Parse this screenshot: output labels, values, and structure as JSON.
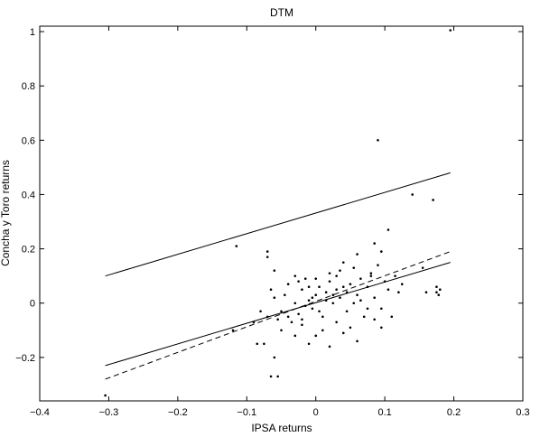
{
  "chart_data": {
    "type": "scatter",
    "title": "DTM",
    "xlabel": "IPSA returns",
    "ylabel": "Concha y Toro returns",
    "xlim": [
      -0.4,
      0.3
    ],
    "ylim": [
      -0.36,
      1.02
    ],
    "xticks": [
      -0.4,
      -0.3,
      -0.2,
      -0.1,
      0,
      0.1,
      0.2,
      0.3
    ],
    "xtick_labels": [
      "−0.4",
      "−0.3",
      "−0.2",
      "−0.1",
      "0",
      "0.1",
      "0.2",
      "0.3"
    ],
    "yticks": [
      -0.2,
      0,
      0.2,
      0.4,
      0.6,
      0.8,
      1
    ],
    "ytick_labels": [
      "−0.2",
      "0",
      "0.2",
      "0.4",
      "0.6",
      "0.8",
      "1"
    ],
    "grid": false,
    "points": [
      [
        -0.305,
        -0.34
      ],
      [
        0.195,
        1.005
      ],
      [
        0.09,
        0.6
      ],
      [
        -0.115,
        0.21
      ],
      [
        0.14,
        0.4
      ],
      [
        0.17,
        0.38
      ],
      [
        0.105,
        0.27
      ],
      [
        0.085,
        0.22
      ],
      [
        -0.07,
        0.19
      ],
      [
        -0.07,
        0.17
      ],
      [
        0.095,
        0.19
      ],
      [
        0.155,
        0.13
      ],
      [
        0.175,
        0.06
      ],
      [
        0.175,
        0.04
      ],
      [
        0.18,
        0.05
      ],
      [
        0.178,
        0.03
      ],
      [
        0.16,
        0.04
      ],
      [
        -0.065,
        -0.27
      ],
      [
        -0.055,
        -0.27
      ],
      [
        -0.12,
        -0.1
      ],
      [
        -0.085,
        -0.15
      ],
      [
        -0.075,
        -0.15
      ],
      [
        -0.06,
        -0.2
      ],
      [
        -0.09,
        -0.07
      ],
      [
        -0.08,
        -0.03
      ],
      [
        -0.07,
        -0.05
      ],
      [
        -0.065,
        0.05
      ],
      [
        -0.06,
        0.02
      ],
      [
        -0.05,
        -0.03
      ],
      [
        -0.045,
        0.03
      ],
      [
        -0.04,
        0.07
      ],
      [
        -0.035,
        -0.07
      ],
      [
        -0.03,
        0.1
      ],
      [
        -0.025,
        0.08
      ],
      [
        -0.02,
        0.05
      ],
      [
        -0.015,
        0.09
      ],
      [
        -0.01,
        0.01
      ],
      [
        -0.005,
        -0.02
      ],
      [
        0.0,
        0.03
      ],
      [
        0.005,
        0.06
      ],
      [
        0.01,
        -0.05
      ],
      [
        0.015,
        0.04
      ],
      [
        0.02,
        0.08
      ],
      [
        0.025,
        0.0
      ],
      [
        0.03,
        0.1
      ],
      [
        0.035,
        0.12
      ],
      [
        0.04,
        0.06
      ],
      [
        0.045,
        -0.03
      ],
      [
        0.05,
        0.07
      ],
      [
        0.055,
        0.13
      ],
      [
        0.06,
        0.03
      ],
      [
        0.065,
        0.09
      ],
      [
        0.07,
        -0.05
      ],
      [
        0.075,
        0.06
      ],
      [
        0.08,
        0.11
      ],
      [
        0.085,
        0.02
      ],
      [
        0.09,
        0.14
      ],
      [
        0.095,
        -0.02
      ],
      [
        0.1,
        0.08
      ],
      [
        0.105,
        0.05
      ],
      [
        0.11,
        -0.05
      ],
      [
        0.115,
        0.1
      ],
      [
        0.12,
        0.04
      ],
      [
        0.125,
        0.07
      ],
      [
        -0.03,
        -0.12
      ],
      [
        -0.02,
        -0.08
      ],
      [
        -0.01,
        -0.15
      ],
      [
        0.0,
        -0.12
      ],
      [
        0.01,
        -0.1
      ],
      [
        0.02,
        -0.16
      ],
      [
        0.03,
        -0.07
      ],
      [
        0.04,
        -0.11
      ],
      [
        0.05,
        -0.09
      ],
      [
        0.06,
        -0.14
      ],
      [
        -0.05,
        -0.1
      ],
      [
        -0.04,
        -0.05
      ],
      [
        -0.03,
        0.0
      ],
      [
        -0.025,
        -0.04
      ],
      [
        -0.015,
        -0.01
      ],
      [
        -0.005,
        0.02
      ],
      [
        0.005,
        -0.03
      ],
      [
        0.015,
        0.01
      ],
      [
        0.025,
        0.03
      ],
      [
        0.035,
        0.02
      ],
      [
        0.045,
        0.04
      ],
      [
        0.055,
        0.0
      ],
      [
        0.065,
        0.01
      ],
      [
        0.075,
        -0.02
      ],
      [
        0.085,
        -0.06
      ],
      [
        0.095,
        -0.09
      ],
      [
        0.02,
        0.11
      ],
      [
        0.04,
        0.15
      ],
      [
        0.06,
        0.18
      ],
      [
        0.08,
        0.1
      ],
      [
        -0.06,
        0.12
      ],
      [
        -0.055,
        -0.06
      ],
      [
        -0.02,
        -0.06
      ],
      [
        -0.01,
        0.06
      ],
      [
        0.0,
        0.09
      ],
      [
        0.03,
        0.05
      ]
    ],
    "lines": [
      {
        "style": "solid",
        "x": [
          -0.305,
          0.195
        ],
        "y": [
          0.1,
          0.48
        ]
      },
      {
        "style": "solid",
        "x": [
          -0.305,
          0.195
        ],
        "y": [
          -0.23,
          0.15
        ]
      },
      {
        "style": "dashed",
        "x": [
          -0.305,
          0.195
        ],
        "y": [
          -0.28,
          0.19
        ]
      }
    ]
  }
}
